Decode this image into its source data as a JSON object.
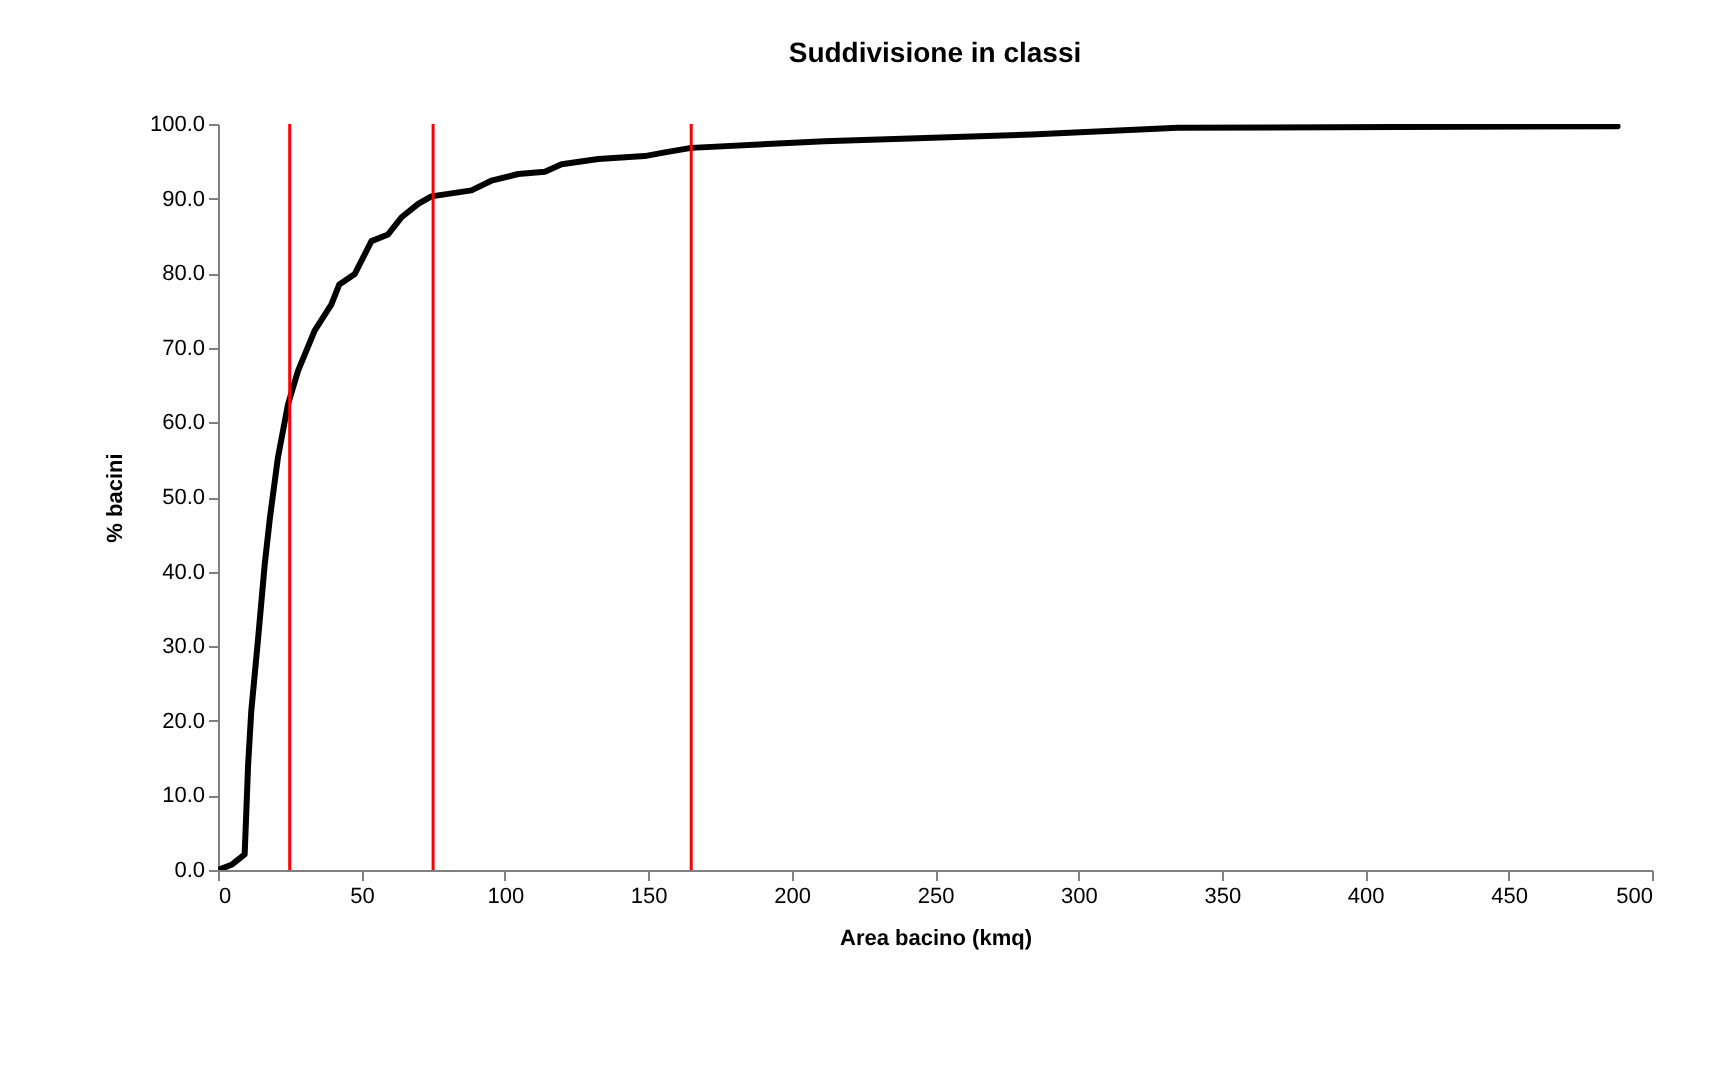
{
  "chart_data": {
    "type": "line",
    "title": "Suddivisione in classi",
    "xlabel": "Area bacino (kmq)",
    "ylabel": "% bacini",
    "xlim": [
      0,
      500
    ],
    "xticks": [
      0,
      50,
      100,
      150,
      200,
      250,
      300,
      350,
      400,
      450,
      500
    ],
    "ylim": [
      0,
      100
    ],
    "yticks": [
      {
        "value": 0,
        "label": "0.0"
      },
      {
        "value": 10,
        "label": "10.0"
      },
      {
        "value": 20,
        "label": "20.0"
      },
      {
        "value": 30,
        "label": "30.0"
      },
      {
        "value": 40,
        "label": "40.0"
      },
      {
        "value": 50,
        "label": "50.0"
      },
      {
        "value": 60,
        "label": "60.0"
      },
      {
        "value": 70,
        "label": "70.0"
      },
      {
        "value": 80,
        "label": "80.0"
      },
      {
        "value": 90,
        "label": "90.0"
      },
      {
        "value": 100,
        "label": "100.0"
      }
    ],
    "grid": false,
    "marker": "none",
    "line_style": "solid",
    "x": [
      0,
      4.7,
      9.3,
      10.5,
      11.6,
      14,
      16.3,
      18.1,
      20.9,
      24.4,
      27.9,
      33.7,
      39.5,
      42.3,
      47.7,
      53.5,
      59.3,
      64,
      69.8,
      74.4,
      88.4,
      95.3,
      104.7,
      114,
      119.8,
      132.6,
      148.8,
      155.8,
      165,
      211.5,
      283.6,
      334.7,
      488
    ],
    "series": [
      {
        "color": "#000000",
        "values": [
          0,
          0.7,
          2.1,
          14.1,
          21.3,
          31.1,
          41,
          47.2,
          55.3,
          62.4,
          66.9,
          72.3,
          75.8,
          78.5,
          79.9,
          84.3,
          85.2,
          87.5,
          89.3,
          90.3,
          91.1,
          92.4,
          93.3,
          93.6,
          94.6,
          95.3,
          95.7,
          96.2,
          96.8,
          97.7,
          98.6,
          99.5,
          99.7
        ]
      }
    ],
    "ref_lines": [
      {
        "axis": "x",
        "value": 25,
        "color": "#ff0000"
      },
      {
        "axis": "x",
        "value": 75,
        "color": "#ff0000"
      },
      {
        "axis": "x",
        "value": 165,
        "color": "#ff0000"
      }
    ]
  }
}
